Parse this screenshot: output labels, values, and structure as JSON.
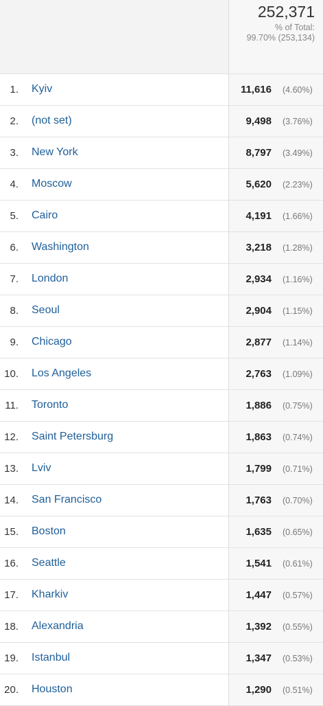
{
  "header": {
    "total": "252,371",
    "percent_label": "% of Total:",
    "percent_value": "99.70% (253,134)"
  },
  "table": {
    "rows": [
      [
        "1.",
        "Kyiv",
        "11,616",
        "(4.60%)"
      ],
      [
        "2.",
        "(not set)",
        "9,498",
        "(3.76%)"
      ],
      [
        "3.",
        "New York",
        "8,797",
        "(3.49%)"
      ],
      [
        "4.",
        "Moscow",
        "5,620",
        "(2.23%)"
      ],
      [
        "5.",
        "Cairo",
        "4,191",
        "(1.66%)"
      ],
      [
        "6.",
        "Washington",
        "3,218",
        "(1.28%)"
      ],
      [
        "7.",
        "London",
        "2,934",
        "(1.16%)"
      ],
      [
        "8.",
        "Seoul",
        "2,904",
        "(1.15%)"
      ],
      [
        "9.",
        "Chicago",
        "2,877",
        "(1.14%)"
      ],
      [
        "10.",
        "Los Angeles",
        "2,763",
        "(1.09%)"
      ],
      [
        "11.",
        "Toronto",
        "1,886",
        "(0.75%)"
      ],
      [
        "12.",
        "Saint Petersburg",
        "1,863",
        "(0.74%)"
      ],
      [
        "13.",
        "Lviv",
        "1,799",
        "(0.71%)"
      ],
      [
        "14.",
        "San Francisco",
        "1,763",
        "(0.70%)"
      ],
      [
        "15.",
        "Boston",
        "1,635",
        "(0.65%)"
      ],
      [
        "16.",
        "Seattle",
        "1,541",
        "(0.61%)"
      ],
      [
        "17.",
        "Kharkiv",
        "1,447",
        "(0.57%)"
      ],
      [
        "18.",
        "Alexandria",
        "1,392",
        "(0.55%)"
      ],
      [
        "19.",
        "Istanbul",
        "1,347",
        "(0.53%)"
      ],
      [
        "20.",
        "Houston",
        "1,290",
        "(0.51%)"
      ]
    ]
  }
}
